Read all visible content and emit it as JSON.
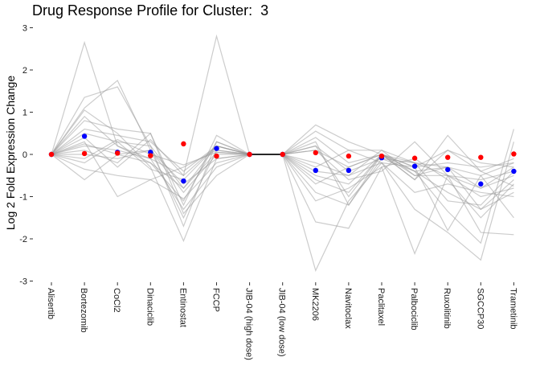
{
  "chart_data": {
    "type": "line",
    "title": "Drug Response Profile for Cluster:  3",
    "xlabel": "",
    "ylabel": "Log 2 Fold Expression Change",
    "ylim": [
      -3,
      3
    ],
    "yticks": [
      -3,
      -2,
      -1,
      0,
      1,
      2,
      3
    ],
    "grid": false,
    "categories": [
      "Alisertib",
      "Bortezomib",
      "CoCl2",
      "Dinaciclib",
      "Entinostat",
      "FCCP",
      "JIB-04 (high dose)",
      "JIB-04 (low dose)",
      "MK2206",
      "Navitoclax",
      "Paclitaxel",
      "Palbociclib",
      "Ruxolitinib",
      "SGCCP30",
      "Trametinib"
    ],
    "gene_lines": [
      [
        0,
        2.65,
        0.2,
        -0.1,
        -0.5,
        2.8,
        0,
        0,
        0.1,
        -0.3,
        0,
        -0.3,
        -0.2,
        -0.3,
        -0.2
      ],
      [
        0,
        1.35,
        1.6,
        0.2,
        -0.8,
        0.2,
        0,
        0,
        0.2,
        -0.4,
        -0.1,
        -0.2,
        -0.5,
        -0.6,
        -0.4
      ],
      [
        0,
        1.1,
        1.75,
        0.1,
        -1.5,
        0.1,
        0,
        0,
        0.4,
        -0.2,
        0,
        -0.4,
        -0.3,
        -0.8,
        -0.3
      ],
      [
        0,
        1.05,
        0.5,
        -0.3,
        -2.05,
        -0.1,
        0,
        0,
        0.7,
        0.3,
        0,
        -0.4,
        -1.35,
        -2.1,
        0.6
      ],
      [
        0,
        0.8,
        0.6,
        0.5,
        -1.2,
        0.45,
        0,
        0,
        -1.6,
        -1.75,
        -0.3,
        -2.35,
        -0.5,
        -0.8,
        -0.5
      ],
      [
        0,
        0.5,
        0.3,
        0.2,
        -1.7,
        0.3,
        0,
        0,
        -2.75,
        -1.1,
        -0.2,
        -1.3,
        -1.85,
        -2.5,
        0.3
      ],
      [
        0,
        0.4,
        -0.3,
        0.35,
        -0.5,
        0.2,
        0,
        0,
        0.3,
        -1.2,
        0,
        -0.3,
        -1.8,
        -0.5,
        -1.5
      ],
      [
        0,
        0.3,
        -1.0,
        -0.6,
        -0.3,
        0.1,
        0,
        0,
        -0.2,
        -0.5,
        0.1,
        -0.5,
        -0.3,
        -1.3,
        -0.6
      ],
      [
        0,
        0.25,
        0.0,
        0.1,
        -0.9,
        0.0,
        0,
        0,
        -1.1,
        -0.8,
        -0.3,
        -0.1,
        -0.6,
        -1.5,
        -0.7
      ],
      [
        0,
        0.2,
        0.1,
        -0.1,
        -1.3,
        -0.3,
        0,
        0,
        -0.7,
        -0.3,
        0,
        -0.6,
        0.45,
        -0.4,
        -0.75
      ],
      [
        0,
        0.1,
        -0.2,
        0.5,
        -1.4,
        -0.5,
        0,
        0,
        0.1,
        -0.6,
        -0.4,
        0.3,
        -0.5,
        -1.85,
        -1.9
      ],
      [
        0,
        -0.1,
        0.35,
        0.0,
        -0.25,
        0.05,
        0,
        0,
        -0.5,
        -0.7,
        0,
        -0.2,
        -1.1,
        -1.2,
        -0.4
      ],
      [
        0,
        -0.2,
        0.3,
        -0.35,
        -0.6,
        0.2,
        0,
        0,
        -0.3,
        0.1,
        -0.2,
        -0.3,
        0.1,
        -0.2,
        -0.3
      ],
      [
        0,
        -0.35,
        -0.5,
        -0.6,
        -1.05,
        -0.2,
        0,
        0,
        -0.6,
        -0.9,
        0,
        -0.5,
        -0.5,
        -1.0,
        -0.8
      ],
      [
        0,
        -0.6,
        0.0,
        -0.2,
        -0.8,
        0.05,
        0,
        0,
        0.2,
        -1.0,
        0,
        -0.6,
        0.1,
        -0.4,
        -0.1
      ],
      [
        0,
        0.6,
        0.45,
        0.3,
        -0.4,
        0.2,
        0,
        0,
        -0.9,
        -1.2,
        -0.1,
        -0.4,
        -0.9,
        -1.3,
        -0.9
      ],
      [
        0,
        0.0,
        -0.1,
        0.1,
        -0.7,
        -0.1,
        0,
        0,
        0.55,
        0.1,
        0.1,
        -0.2,
        -0.3,
        -0.5,
        -0.2
      ],
      [
        0,
        0.9,
        0.2,
        -0.2,
        -1.1,
        0.3,
        0,
        0,
        -0.4,
        -0.5,
        -0.2,
        -0.9,
        -0.7,
        -0.9,
        -1.0
      ]
    ],
    "blue_points": [
      0,
      0.43,
      0.05,
      0.05,
      -0.63,
      0.14,
      0,
      0,
      -0.38,
      -0.38,
      -0.08,
      -0.28,
      -0.36,
      -0.7,
      -0.4
    ],
    "red_points": [
      0,
      0.02,
      0.03,
      -0.03,
      0.25,
      -0.04,
      0,
      0,
      0.04,
      -0.04,
      -0.04,
      -0.09,
      -0.07,
      -0.07,
      0.01
    ],
    "colors": {
      "gene_line": "#999999",
      "blue_point": "#0000ff",
      "red_point": "#ff0000",
      "center_line": "#000000"
    }
  }
}
